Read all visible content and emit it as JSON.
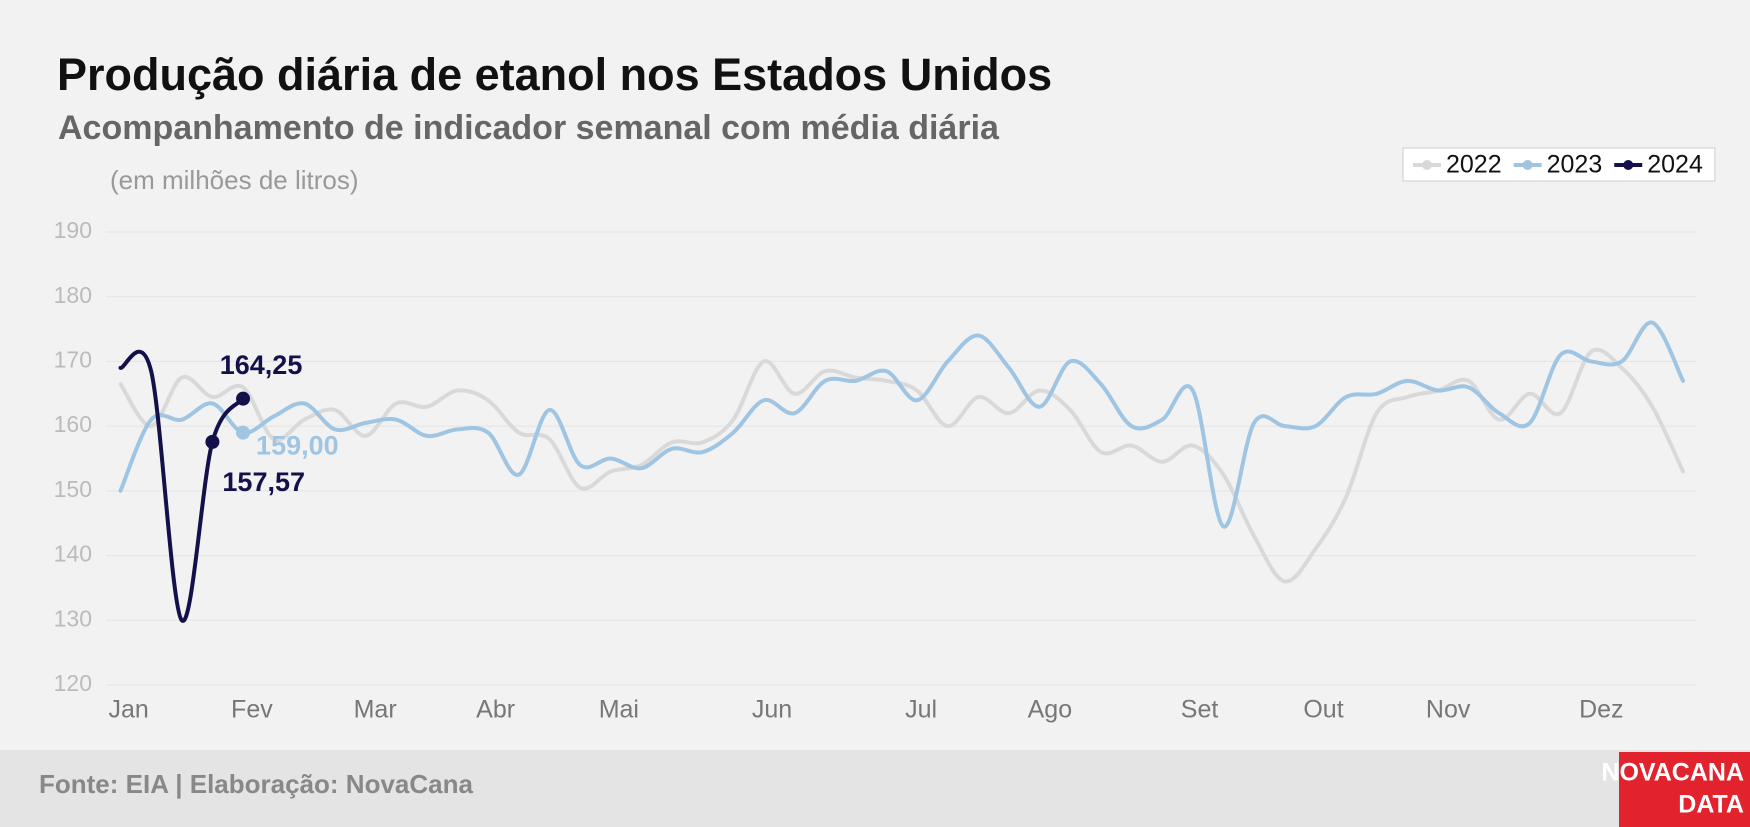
{
  "chart_data": {
    "type": "line",
    "title": "Produção diária de etanol nos Estados Unidos",
    "subtitle": "Acompanhamento de indicador semanal com média diária",
    "y_label": "(em milhões de litros)",
    "source": "Fonte: EIA | Elaboração: NovaCana",
    "logo": [
      "NOVACANA",
      "DATA"
    ],
    "x": [
      1,
      2,
      3,
      4,
      5,
      6,
      7,
      8,
      9,
      10,
      11,
      12,
      13,
      14,
      15,
      16,
      17,
      18,
      19,
      20,
      21,
      22,
      23,
      24,
      25,
      26,
      27,
      28,
      29,
      30,
      31,
      32,
      33,
      34,
      35,
      36,
      37,
      38,
      39,
      40,
      41,
      42,
      43,
      44,
      45,
      46,
      47,
      48,
      49,
      50,
      51,
      52
    ],
    "xlim": [
      1,
      52
    ],
    "xticks": [
      {
        "value": 1,
        "label": "Jan"
      },
      {
        "value": 5,
        "label": "Fev"
      },
      {
        "value": 9,
        "label": "Mar"
      },
      {
        "value": 13,
        "label": "Abr"
      },
      {
        "value": 17,
        "label": "Mai"
      },
      {
        "value": 22,
        "label": "Jun"
      },
      {
        "value": 27,
        "label": "Jul"
      },
      {
        "value": 31,
        "label": "Ago"
      },
      {
        "value": 36,
        "label": "Set"
      },
      {
        "value": 40,
        "label": "Out"
      },
      {
        "value": 44,
        "label": "Nov"
      },
      {
        "value": 49,
        "label": "Dez"
      }
    ],
    "ylim": [
      120,
      190
    ],
    "yticks": [
      120,
      130,
      140,
      150,
      160,
      170,
      180,
      190
    ],
    "grid": true,
    "legend": "top-right",
    "series": [
      {
        "name": "2022",
        "color": "#d9d9d9",
        "values": [
          166.5,
          160,
          167.5,
          164.5,
          166,
          158,
          161,
          162.5,
          158.5,
          163.5,
          163,
          165.5,
          164,
          159,
          158,
          150.5,
          153,
          154,
          157.5,
          157.5,
          161,
          170,
          165,
          168.5,
          167.5,
          167,
          165.5,
          160,
          164.5,
          162,
          165.5,
          162.5,
          156,
          157,
          154.5,
          157,
          152.5,
          143,
          136,
          141,
          149,
          162,
          164.5,
          165.5,
          167,
          161,
          165,
          162,
          171.5,
          169,
          163,
          153
        ]
      },
      {
        "name": "2023",
        "color": "#9fc5e3",
        "values": [
          150,
          161,
          161,
          163.5,
          159,
          161.5,
          163.5,
          159.5,
          160.5,
          161,
          158.5,
          159.5,
          159,
          152.5,
          162.5,
          154,
          155,
          153.5,
          156.5,
          156,
          159,
          164,
          162,
          167,
          167,
          168.5,
          164,
          170,
          174,
          169,
          163,
          170,
          166.5,
          160,
          161,
          165.5,
          144.5,
          160.5,
          160,
          160,
          164.5,
          165,
          167,
          165.5,
          166,
          162,
          160.5,
          171,
          170,
          170,
          176,
          167
        ],
        "value_labels": [
          null,
          null,
          null,
          null,
          "159,00",
          null,
          null,
          null,
          null,
          null,
          null,
          null,
          null,
          null,
          null,
          null,
          null,
          null,
          null,
          null,
          null,
          null,
          null,
          null,
          null,
          null,
          null,
          null,
          null,
          null,
          null,
          null,
          null,
          null,
          null,
          null,
          null,
          null,
          null,
          null,
          null,
          null,
          null,
          null,
          null,
          null,
          null,
          null,
          null,
          null,
          null,
          null
        ]
      },
      {
        "name": "2024",
        "color": "#14104a",
        "values": [
          169,
          168.5,
          130,
          157.57,
          164.25,
          null,
          null,
          null,
          null,
          null,
          null,
          null,
          null,
          null,
          null,
          null,
          null,
          null,
          null,
          null,
          null,
          null,
          null,
          null,
          null,
          null,
          null,
          null,
          null,
          null,
          null,
          null,
          null,
          null,
          null,
          null,
          null,
          null,
          null,
          null,
          null,
          null,
          null,
          null,
          null,
          null,
          null,
          null,
          null,
          null,
          null,
          null
        ],
        "value_labels": [
          null,
          null,
          null,
          "157,57",
          "164,25",
          null,
          null,
          null,
          null,
          null,
          null,
          null,
          null,
          null,
          null,
          null,
          null,
          null,
          null,
          null,
          null,
          null,
          null,
          null,
          null,
          null,
          null,
          null,
          null,
          null,
          null,
          null,
          null,
          null,
          null,
          null,
          null,
          null,
          null,
          null,
          null,
          null,
          null,
          null,
          null,
          null,
          null,
          null,
          null,
          null,
          null,
          null
        ]
      }
    ]
  }
}
